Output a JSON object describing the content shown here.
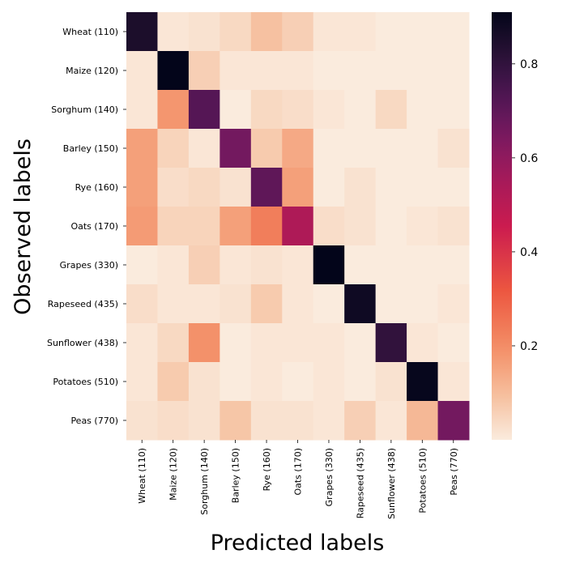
{
  "chart_data": {
    "type": "heatmap",
    "title": "",
    "xlabel": "Predicted labels",
    "ylabel": "Observed labels",
    "x_categories": [
      "Wheat (110)",
      "Maize (120)",
      "Sorghum (140)",
      "Barley (150)",
      "Rye (160)",
      "Oats (170)",
      "Grapes (330)",
      "Rapeseed (435)",
      "Sunflower (438)",
      "Potatoes (510)",
      "Peas (770)"
    ],
    "y_categories": [
      "Wheat (110)",
      "Maize (120)",
      "Sorghum (140)",
      "Barley (150)",
      "Rye (160)",
      "Oats (170)",
      "Grapes (330)",
      "Rapeseed (435)",
      "Sunflower (438)",
      "Potatoes (510)",
      "Peas (770)"
    ],
    "values": [
      [
        0.85,
        0.01,
        0.02,
        0.04,
        0.09,
        0.06,
        0.01,
        0.01,
        0.0,
        0.0,
        0.0
      ],
      [
        0.01,
        0.91,
        0.06,
        0.01,
        0.01,
        0.01,
        0.0,
        0.0,
        0.0,
        0.0,
        0.0
      ],
      [
        0.01,
        0.18,
        0.72,
        0.0,
        0.04,
        0.03,
        0.01,
        0.0,
        0.04,
        0.0,
        0.0
      ],
      [
        0.16,
        0.05,
        0.01,
        0.66,
        0.07,
        0.14,
        0.0,
        0.0,
        0.0,
        0.0,
        0.02
      ],
      [
        0.16,
        0.03,
        0.04,
        0.02,
        0.7,
        0.16,
        0.0,
        0.02,
        0.0,
        0.0,
        0.0
      ],
      [
        0.17,
        0.05,
        0.05,
        0.16,
        0.23,
        0.53,
        0.03,
        0.02,
        0.0,
        0.01,
        0.02
      ],
      [
        0.0,
        0.01,
        0.06,
        0.01,
        0.02,
        0.01,
        0.91,
        0.0,
        0.0,
        0.0,
        0.0
      ],
      [
        0.03,
        0.01,
        0.01,
        0.02,
        0.07,
        0.01,
        0.0,
        0.88,
        0.0,
        0.0,
        0.01
      ],
      [
        0.01,
        0.04,
        0.19,
        0.0,
        0.01,
        0.01,
        0.01,
        0.0,
        0.8,
        0.01,
        0.0
      ],
      [
        0.01,
        0.07,
        0.02,
        0.0,
        0.01,
        0.0,
        0.01,
        0.0,
        0.02,
        0.9,
        0.01
      ],
      [
        0.02,
        0.03,
        0.02,
        0.08,
        0.02,
        0.02,
        0.01,
        0.06,
        0.01,
        0.11,
        0.66
      ]
    ],
    "colorbar": {
      "min": 0.0,
      "max": 0.91,
      "ticks": [
        0.2,
        0.4,
        0.6,
        0.8
      ],
      "tick_labels": [
        "0.2",
        "0.4",
        "0.6",
        "0.8"
      ],
      "colormap": "rocket_r"
    },
    "grid": false,
    "legend": "colorbar-right"
  }
}
